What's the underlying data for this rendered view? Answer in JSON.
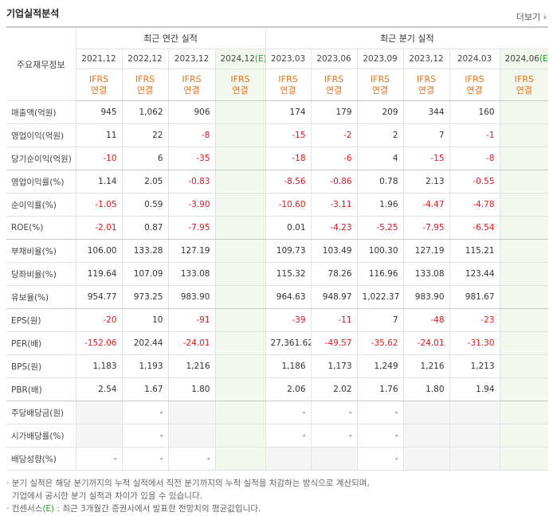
{
  "header": {
    "title": "기업실적분석",
    "more": "더보기 ›"
  },
  "table": {
    "corner": "주요재무정보",
    "groups": [
      "최근 연간 실적",
      "최근 분기 실적"
    ],
    "columns": [
      {
        "date": "2021,12",
        "standard": "IFRS",
        "consolidation": "연결"
      },
      {
        "date": "2022,12",
        "standard": "IFRS",
        "consolidation": "연결"
      },
      {
        "date": "2023,12",
        "standard": "IFRS",
        "consolidation": "연결"
      },
      {
        "date": "2024,12",
        "estimate": "(E)",
        "standard": "IFRS",
        "consolidation": "연결"
      },
      {
        "date": "2023,03",
        "standard": "IFRS",
        "consolidation": "연결"
      },
      {
        "date": "2023,06",
        "standard": "IFRS",
        "consolidation": "연결"
      },
      {
        "date": "2023,09",
        "standard": "IFRS",
        "consolidation": "연결"
      },
      {
        "date": "2023,12",
        "standard": "IFRS",
        "consolidation": "연결"
      },
      {
        "date": "2024,03",
        "standard": "IFRS",
        "consolidation": "연결"
      },
      {
        "date": "2024,06",
        "estimate": "(E)",
        "standard": "IFRS",
        "consolidation": "연결"
      }
    ],
    "rows": [
      {
        "label": "매출액(억원)",
        "values": [
          "945",
          "1,062",
          "906",
          null,
          "174",
          "179",
          "209",
          "344",
          "160",
          null
        ]
      },
      {
        "label": "영업이익(억원)",
        "values": [
          "11",
          "22",
          "-8",
          null,
          "-15",
          "-2",
          "2",
          "7",
          "-1",
          null
        ]
      },
      {
        "label": "당기순이익(억원)",
        "values": [
          "-10",
          "6",
          "-35",
          null,
          "-18",
          "-6",
          "4",
          "-15",
          "-8",
          null
        ]
      },
      {
        "label": "영업이익률(%)",
        "values": [
          "1.14",
          "2.05",
          "-0.83",
          null,
          "-8.56",
          "-0.86",
          "0.78",
          "2.13",
          "-0.55",
          null
        ]
      },
      {
        "label": "순이익률(%)",
        "values": [
          "-1.05",
          "0.59",
          "-3.90",
          null,
          "-10.60",
          "-3.11",
          "1.96",
          "-4.47",
          "-4.78",
          null
        ]
      },
      {
        "label": "ROE(%)",
        "values": [
          "-2.01",
          "0.87",
          "-7.95",
          null,
          "0.01",
          "-4.23",
          "-5.25",
          "-7.95",
          "-6.54",
          null
        ]
      },
      {
        "label": "부채비율(%)",
        "values": [
          "106.00",
          "133.28",
          "127.19",
          null,
          "109.73",
          "103.49",
          "100.30",
          "127.19",
          "115.21",
          null
        ]
      },
      {
        "label": "당좌비율(%)",
        "values": [
          "119.64",
          "107.09",
          "133.08",
          null,
          "115.32",
          "78.26",
          "116.96",
          "133.08",
          "123.44",
          null
        ]
      },
      {
        "label": "유보율(%)",
        "values": [
          "954.77",
          "973.25",
          "983.90",
          null,
          "964.63",
          "948.97",
          "1,022.37",
          "983.90",
          "981.67",
          null
        ]
      },
      {
        "label": "EPS(원)",
        "values": [
          "-20",
          "10",
          "-91",
          null,
          "-39",
          "-11",
          "7",
          "-48",
          "-23",
          null
        ]
      },
      {
        "label": "PER(배)",
        "values": [
          "-152.06",
          "202.44",
          "-24.01",
          null,
          "27,361.62",
          "-49.57",
          "-35.62",
          "-24.01",
          "-31.30",
          null
        ]
      },
      {
        "label": "BPS(원)",
        "values": [
          "1,183",
          "1,193",
          "1,216",
          null,
          "1,186",
          "1,173",
          "1,249",
          "1,216",
          "1,213",
          null
        ]
      },
      {
        "label": "PBR(배)",
        "values": [
          "2.54",
          "1.67",
          "1.80",
          null,
          "2.06",
          "2.02",
          "1.76",
          "1.80",
          "1.94",
          null
        ]
      },
      {
        "label": "주당배당금(원)",
        "values": [
          null,
          "-",
          null,
          null,
          "-",
          "-",
          "-",
          null,
          null,
          null
        ]
      },
      {
        "label": "시가배당률(%)",
        "values": [
          null,
          "-",
          null,
          null,
          "-",
          "-",
          "-",
          null,
          null,
          null
        ]
      },
      {
        "label": "배당성향(%)",
        "values": [
          "-",
          "-",
          "-",
          null,
          null,
          null,
          "-",
          null,
          null,
          null
        ]
      }
    ]
  },
  "notes": {
    "line1": "분기 실적은 해당 분기까지의 누적 실적에서 직전 분기까지의 누적 실적을 차감하는 방식으로 계산되며,",
    "line2": "기업에서 공시한 분기 실적과 차이가 있을 수 있습니다.",
    "consensus": "컨센서스",
    "estimate": "(E)",
    "consensus_text": " : 최근 3개월간 증권사에서 발표한 전망치의 평균값입니다."
  }
}
